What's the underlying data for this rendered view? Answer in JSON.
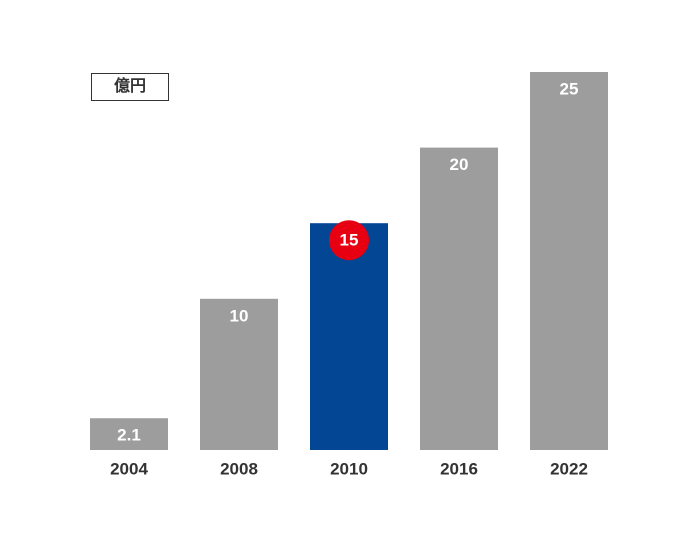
{
  "chart_data": {
    "type": "bar",
    "unit_label": "億円",
    "categories": [
      "2004",
      "2008",
      "2010",
      "2016",
      "2022"
    ],
    "values": [
      2.1,
      10,
      15,
      20,
      25
    ],
    "colors": [
      "#9e9d9d",
      "#9e9d9d",
      "#034694",
      "#9e9d9d",
      "#9e9d9d"
    ],
    "label_badges": [
      null,
      null,
      "#e60012",
      null,
      null
    ],
    "ylim": [
      0,
      25
    ]
  }
}
